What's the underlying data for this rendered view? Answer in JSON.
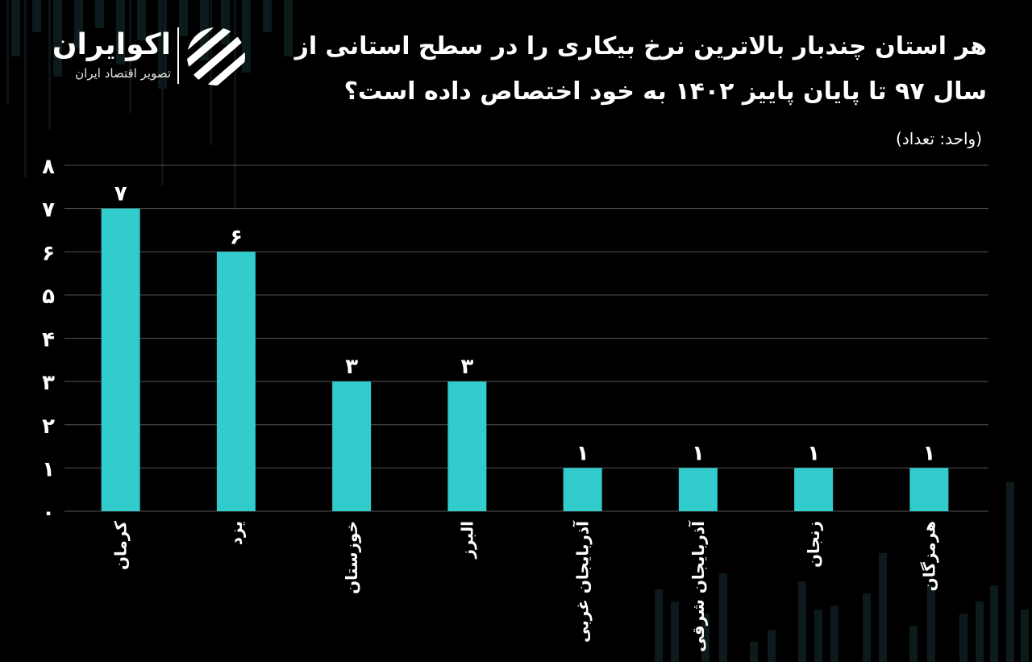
{
  "brand": {
    "name": "اکوایران",
    "tagline": "تصویر اقتصاد ایران"
  },
  "title_line1": "هر استان چندبار بالاترین نرخ بیکاری را در سطح استانی از",
  "title_line2": "سال ۹۷ تا پایان پاییز ۱۴۰۲ به خود اختصاص داده است؟",
  "unit_label": "(واحد: تعداد)",
  "colors": {
    "bar": "#33CCCC",
    "grid": "#555555",
    "text": "#FFFFFF",
    "background": "#000000"
  },
  "chart_data": {
    "type": "bar",
    "categories": [
      "کرمان",
      "یزد",
      "خوزستان",
      "البرز",
      "آذربایجان غربی",
      "آذربایجان شرقی",
      "زنجان",
      "هرمزگان"
    ],
    "values": [
      7,
      6,
      3,
      3,
      1,
      1,
      1,
      1
    ],
    "value_labels": [
      "۷",
      "۶",
      "۳",
      "۳",
      "۱",
      "۱",
      "۱",
      "۱"
    ],
    "ylim": [
      0,
      8
    ],
    "yticks": [
      0,
      1,
      2,
      3,
      4,
      5,
      6,
      7,
      8
    ],
    "ytick_labels": [
      "۰",
      "۱",
      "۲",
      "۳",
      "۴",
      "۵",
      "۶",
      "۷",
      "۸"
    ],
    "grid": true,
    "xlabel": "",
    "ylabel": ""
  }
}
